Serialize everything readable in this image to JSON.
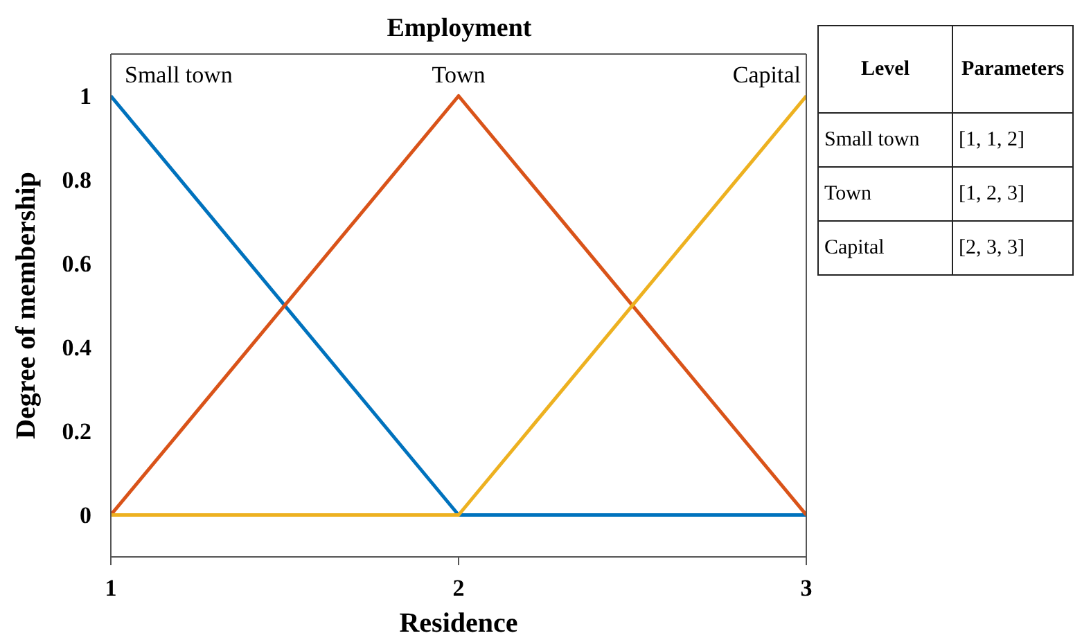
{
  "chart_data": [
    {
      "type": "line",
      "title": "Employment",
      "xlabel": "Residence",
      "ylabel": "Degree of membership",
      "xlim": [
        1,
        3
      ],
      "xticks": [
        1,
        2,
        3
      ],
      "ylim": [
        -0.1,
        1.1
      ],
      "yticks": [
        0,
        0.2,
        0.4,
        0.6,
        0.8,
        1
      ],
      "grid": false,
      "line_style": "solid",
      "series": [
        {
          "name": "Small town",
          "color": "#0072bd",
          "x": [
            1,
            2,
            3
          ],
          "values": [
            1,
            0,
            0
          ]
        },
        {
          "name": "Town",
          "color": "#d95319",
          "x": [
            1,
            2,
            3
          ],
          "values": [
            0,
            1,
            0
          ]
        },
        {
          "name": "Capital",
          "color": "#edb120",
          "x": [
            1,
            2,
            3
          ],
          "values": [
            0,
            0,
            1
          ]
        }
      ]
    },
    {
      "type": "other",
      "annotations": [
        "Level",
        "Parameters",
        "Small town",
        "[1, 1, 2]",
        "Town",
        "[1, 2, 3]",
        "Capital",
        "[2, 3, 3]"
      ]
    }
  ]
}
